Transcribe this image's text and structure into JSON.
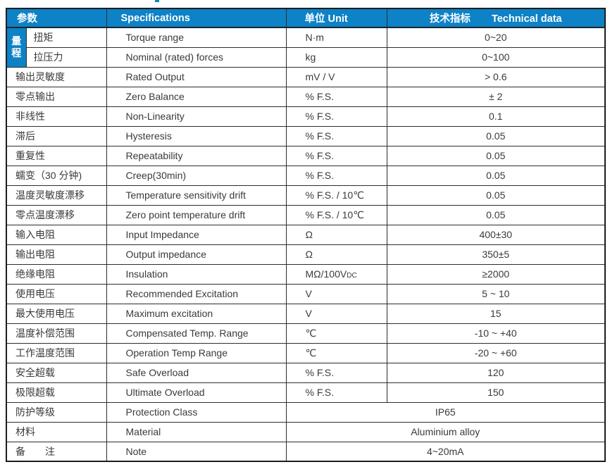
{
  "colors": {
    "header_bg": "#0e82c6",
    "header_text": "#ffffff",
    "body_text": "#3a3a3a",
    "border": "#2d2d2d"
  },
  "table": {
    "header": {
      "param": "参数",
      "spec": "Specifications",
      "unit": "单位 Unit",
      "tech_cn": "技术指标",
      "tech_en": "Technical data"
    },
    "range_group": {
      "label": "量程",
      "rowspan": 2
    },
    "rows": [
      {
        "param": "扭矩",
        "spec": "Torque range",
        "unit": "N·m",
        "value": "0~20",
        "group_start": true,
        "in_group": true
      },
      {
        "param": "拉压力",
        "spec": "Nominal (rated) forces",
        "unit": "kg",
        "value": "0~100",
        "in_group": true
      },
      {
        "param": "输出灵敏度",
        "spec": "Rated Output",
        "unit": "mV / V",
        "value": "> 0.6"
      },
      {
        "param": "零点输出",
        "spec": "Zero Balance",
        "unit": "% F.S.",
        "value": "± 2"
      },
      {
        "param": "非线性",
        "spec": "Non-Linearity",
        "unit": "% F.S.",
        "value": "0.1"
      },
      {
        "param": "滞后",
        "spec": "Hysteresis",
        "unit": "% F.S.",
        "value": "0.05"
      },
      {
        "param": "重复性",
        "spec": "Repeatability",
        "unit": "% F.S.",
        "value": "0.05"
      },
      {
        "param": "蠕变（30 分钟)",
        "spec": "Creep(30min)",
        "unit": "% F.S.",
        "value": "0.05"
      },
      {
        "param": "温度灵敏度漂移",
        "spec": "Temperature sensitivity drift",
        "unit": "% F.S. / 10℃",
        "value": "0.05"
      },
      {
        "param": "零点温度漂移",
        "spec": "Zero point temperature drift",
        "unit": "% F.S. / 10℃",
        "value": "0.05"
      },
      {
        "param": "输入电阻",
        "spec": "Input Impedance",
        "unit": "Ω",
        "value": "400±30"
      },
      {
        "param": "输出电阻",
        "spec": "Output impedance",
        "unit": "Ω",
        "value": "350±5"
      },
      {
        "param": "绝缘电阻",
        "spec": "Insulation",
        "unit": "MΩ/100V",
        "unit_sub": "DC",
        "value": "≥2000"
      },
      {
        "param": "使用电压",
        "spec": "Recommended Excitation",
        "unit": "V",
        "value": "5 ~ 10"
      },
      {
        "param": "最大使用电压",
        "spec": "Maximum excitation",
        "unit": "V",
        "value": "15"
      },
      {
        "param": "温度补偿范围",
        "spec": "Compensated Temp. Range",
        "unit": "℃",
        "value": "-10 ~ +40"
      },
      {
        "param": "工作温度范围",
        "spec": "Operation Temp Range",
        "unit": "℃",
        "value": "-20 ~ +60"
      },
      {
        "param": "安全超载",
        "spec": "Safe Overload",
        "unit": "% F.S.",
        "value": "120"
      },
      {
        "param": "极限超载",
        "spec": "Ultimate Overload",
        "unit": "% F.S.",
        "value": "150"
      },
      {
        "param": "防护等级",
        "spec": "Protection Class",
        "value": "IP65",
        "merged": true
      },
      {
        "param": "材料",
        "spec": "Material",
        "value": "Aluminium alloy",
        "merged": true
      },
      {
        "param": "备　　注",
        "spec": "Note",
        "value": "4~20mA",
        "merged": true
      }
    ]
  }
}
